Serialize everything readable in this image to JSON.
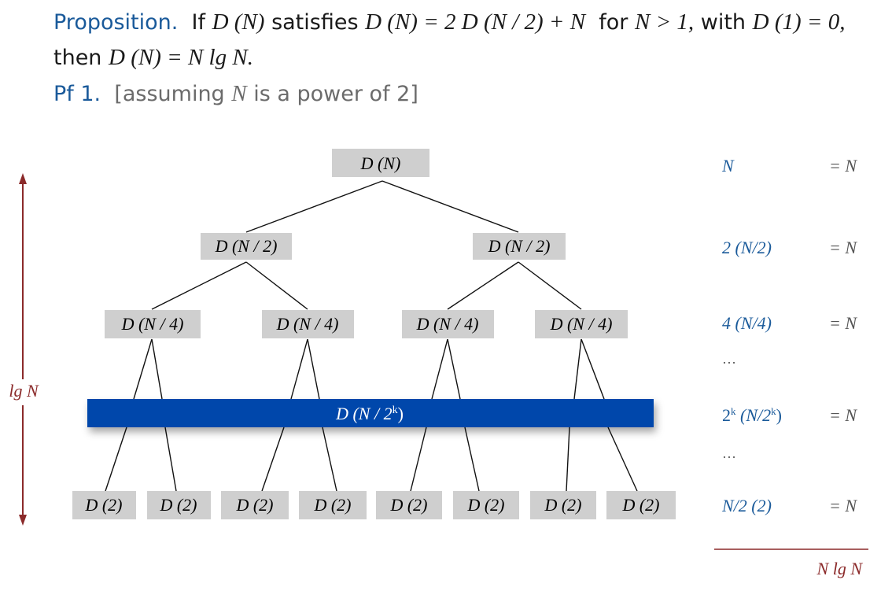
{
  "proposition": {
    "label": "Proposition.",
    "text_if": "If",
    "d_n": "D (N)",
    "text_satisfies": "satisfies",
    "recurrence": "D (N) = 2 D (N / 2) + N",
    "text_for": "for",
    "cond": "N > 1,",
    "text_with": "with",
    "base": "D (1) = 0,",
    "text_then": "then",
    "result": "D (N) = N lg N."
  },
  "proof": {
    "label": "Pf 1.",
    "note_open": "[assuming",
    "note_n": "N",
    "note_close": "is a power of 2]"
  },
  "tree": {
    "root": "D (N)",
    "level1": [
      "D (N / 2)",
      "D (N / 2)"
    ],
    "level2": [
      "D (N / 4)",
      "D (N / 4)",
      "D (N / 4)",
      "D (N / 4)"
    ],
    "band_base": "D (N / 2",
    "band_sup": "k",
    "band_close": ")",
    "leaves": [
      "D (2)",
      "D (2)",
      "D (2)",
      "D (2)",
      "D (2)",
      "D (2)",
      "D (2)",
      "D (2)"
    ]
  },
  "height_label": "lg N",
  "levels": [
    {
      "cost": "N",
      "eq": "= N"
    },
    {
      "cost": "2 (N/2)",
      "eq": "= N"
    },
    {
      "cost": "4 (N/4)",
      "eq": "= N"
    },
    {
      "cost": "…",
      "eq": ""
    },
    {
      "cost": "2k (N/2k)",
      "eq": "= N"
    },
    {
      "cost": "…",
      "eq": ""
    },
    {
      "cost": "N/2 (2)",
      "eq": "= N"
    }
  ],
  "total": "N lg N",
  "colors": {
    "accent_blue": "#1a5a9a",
    "band_blue": "#0047ab",
    "node_gray": "#cfcfcf",
    "red": "#8b2a2a"
  }
}
